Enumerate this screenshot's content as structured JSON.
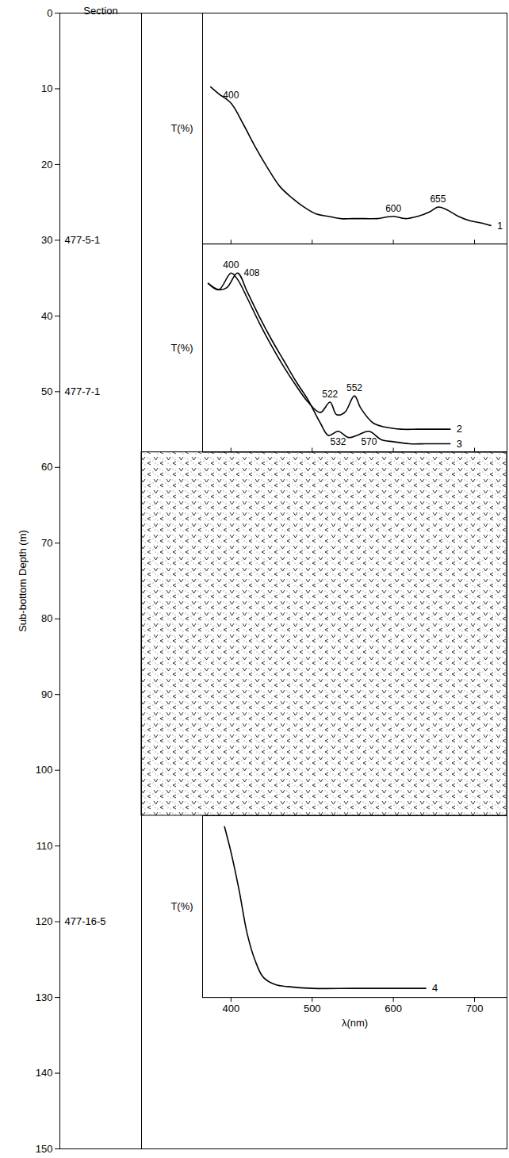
{
  "chart_data": {
    "type": "depth_column",
    "ylabel": "Sub-bottom Depth (m)",
    "ylim": [
      0,
      150
    ],
    "yticks": [
      0,
      10,
      20,
      30,
      40,
      50,
      60,
      70,
      80,
      90,
      100,
      110,
      120,
      130,
      140,
      150
    ],
    "section_header": "Section",
    "sections": [
      {
        "label": "477-5-1",
        "depth": 30
      },
      {
        "label": "477-7-1",
        "depth": 50
      },
      {
        "label": "477-16-5",
        "depth": 120
      }
    ],
    "hatched_interval": [
      58,
      106
    ],
    "panels": [
      {
        "type": "line",
        "depth_range": [
          0,
          30.5
        ],
        "ylabel": "T(%)",
        "xlim": [
          365,
          740
        ],
        "xticks": [
          400,
          500,
          600,
          700
        ],
        "ylim": [
          0,
          100
        ],
        "tick_labels": false,
        "series": [
          {
            "name": "1",
            "color": "black",
            "x": [
              375,
              385,
              400,
              415,
              430,
              445,
              460,
              475,
              490,
              505,
              520,
              535,
              550,
              565,
              580,
              600,
              615,
              630,
              645,
              655,
              665,
              680,
              695,
              710,
              720
            ],
            "values": [
              68,
              65,
              61,
              52,
              42,
              33,
              25,
              20,
              16,
              13,
              12,
              11,
              11,
              11,
              11,
              12,
              11,
              12,
              14,
              16,
              15,
              12,
              10,
              9,
              8
            ],
            "peaks": [
              400,
              600,
              655
            ]
          }
        ]
      },
      {
        "type": "line",
        "depth_range": [
          30.5,
          58
        ],
        "ylabel": "T(%)",
        "xlim": [
          365,
          740
        ],
        "xticks": [
          400,
          500,
          600,
          700
        ],
        "ylim": [
          0,
          100
        ],
        "tick_labels": false,
        "series": [
          {
            "name": "2",
            "color": "black",
            "x": [
              372,
              385,
              400,
              408,
              420,
              435,
              450,
              465,
              480,
              495,
              510,
              522,
              530,
              540,
              552,
              560,
              575,
              590,
              610,
              630,
              650,
              670
            ],
            "values": [
              81,
              78,
              86,
              83,
              74,
              62,
              51,
              41,
              32,
              24,
              19,
              24,
              18,
              19,
              27,
              21,
              14,
              12,
              11,
              11,
              11,
              11
            ],
            "peaks": [
              400,
              522,
              552
            ]
          },
          {
            "name": "3",
            "color": "black",
            "x": [
              372,
              385,
              395,
              408,
              420,
              435,
              450,
              465,
              480,
              495,
              510,
              520,
              532,
              545,
              555,
              570,
              585,
              600,
              620,
              640,
              670
            ],
            "values": [
              81,
              78,
              79,
              86,
              77,
              65,
              54,
              44,
              34,
              25,
              14,
              8,
              10,
              7,
              8,
              10,
              6,
              5,
              4,
              4,
              4
            ],
            "peaks": [
              408,
              532,
              570
            ]
          }
        ]
      },
      {
        "type": "line",
        "depth_range": [
          106,
          130
        ],
        "ylabel": "T(%)",
        "xlabel": "λ(nm)",
        "xlim": [
          365,
          740
        ],
        "xticks": [
          400,
          500,
          600,
          700
        ],
        "ylim": [
          0,
          100
        ],
        "tick_labels": "x",
        "series": [
          {
            "name": "4",
            "color": "black",
            "x": [
              392,
              400,
              410,
              420,
              430,
              440,
              455,
              470,
              500,
              550,
              600,
              640
            ],
            "values": [
              94,
              80,
              59,
              35,
              20,
              11,
              7,
              6,
              5,
              5,
              5,
              5
            ],
            "peaks": []
          }
        ]
      }
    ]
  }
}
